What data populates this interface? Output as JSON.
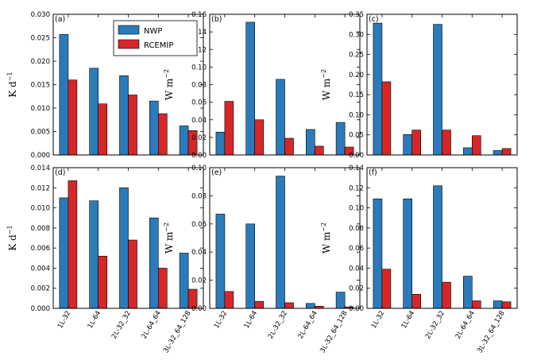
{
  "chart_data": {
    "type": "bar",
    "categories": [
      "1L-32",
      "1L-64",
      "2L-32_32",
      "2L-64_64",
      "3L-32_64_128"
    ],
    "series_names": [
      "NWP",
      "RCEMIP"
    ],
    "colors": {
      "NWP": "#2b7bba",
      "RCEMIP": "#d62728"
    },
    "legend": {
      "location": "upper right of panel (a)",
      "entries": [
        "NWP",
        "RCEMIP"
      ]
    },
    "panels": [
      {
        "label": "(a)",
        "ylabel": "K d",
        "ylabel_exp": "−1",
        "ylim": [
          0,
          0.03
        ],
        "yticks": [
          "0.000",
          "0.005",
          "0.010",
          "0.015",
          "0.020",
          "0.025",
          "0.030"
        ],
        "series": [
          {
            "name": "NWP",
            "values": [
              0.0257,
              0.0185,
              0.0169,
              0.0115,
              0.0062
            ]
          },
          {
            "name": "RCEMIP",
            "values": [
              0.016,
              0.0109,
              0.0128,
              0.0088,
              0.0052
            ]
          }
        ]
      },
      {
        "label": "(b)",
        "ylabel": "W m",
        "ylabel_exp": "−2",
        "ylim": [
          0,
          0.16
        ],
        "yticks": [
          "0.00",
          "0.02",
          "0.04",
          "0.06",
          "0.08",
          "0.10",
          "0.12",
          "0.14",
          "0.16"
        ],
        "series": [
          {
            "name": "NWP",
            "values": [
              0.026,
              0.151,
              0.086,
              0.029,
              0.037
            ]
          },
          {
            "name": "RCEMIP",
            "values": [
              0.061,
              0.04,
              0.019,
              0.01,
              0.009
            ]
          }
        ]
      },
      {
        "label": "(c)",
        "ylabel": "W m",
        "ylabel_exp": "−2",
        "ylim": [
          0,
          0.35
        ],
        "yticks": [
          "0.00",
          "0.05",
          "0.10",
          "0.15",
          "0.20",
          "0.25",
          "0.30",
          "0.35"
        ],
        "series": [
          {
            "name": "NWP",
            "values": [
              0.328,
              0.051,
              0.325,
              0.018,
              0.011
            ]
          },
          {
            "name": "RCEMIP",
            "values": [
              0.182,
              0.062,
              0.062,
              0.048,
              0.016
            ]
          }
        ]
      },
      {
        "label": "(d)",
        "ylabel": "K d",
        "ylabel_exp": "−1",
        "ylim": [
          0,
          0.014
        ],
        "yticks": [
          "0.000",
          "0.002",
          "0.004",
          "0.006",
          "0.008",
          "0.010",
          "0.012",
          "0.014"
        ],
        "series": [
          {
            "name": "NWP",
            "values": [
              0.011,
              0.0107,
              0.012,
              0.009,
              0.0055
            ]
          },
          {
            "name": "RCEMIP",
            "values": [
              0.0127,
              0.0052,
              0.0068,
              0.004,
              0.0019
            ]
          }
        ]
      },
      {
        "label": "(e)",
        "ylabel": "W m",
        "ylabel_exp": "−2",
        "ylim": [
          0,
          0.1
        ],
        "yticks": [
          "0.00",
          "0.02",
          "0.04",
          "0.06",
          "0.08",
          "0.10"
        ],
        "series": [
          {
            "name": "NWP",
            "values": [
              0.067,
              0.06,
              0.094,
              0.0035,
              0.0115
            ]
          },
          {
            "name": "RCEMIP",
            "values": [
              0.012,
              0.005,
              0.004,
              0.0015,
              0.001
            ]
          }
        ]
      },
      {
        "label": "(f)",
        "ylabel": "W m",
        "ylabel_exp": "−2",
        "ylim": [
          0,
          0.14
        ],
        "yticks": [
          "0.00",
          "0.02",
          "0.04",
          "0.06",
          "0.08",
          "0.10",
          "0.12",
          "0.14"
        ],
        "series": [
          {
            "name": "NWP",
            "values": [
              0.109,
              0.109,
              0.122,
              0.032,
              0.0075
            ]
          },
          {
            "name": "RCEMIP",
            "values": [
              0.039,
              0.014,
              0.026,
              0.0075,
              0.0065
            ]
          }
        ]
      }
    ]
  }
}
